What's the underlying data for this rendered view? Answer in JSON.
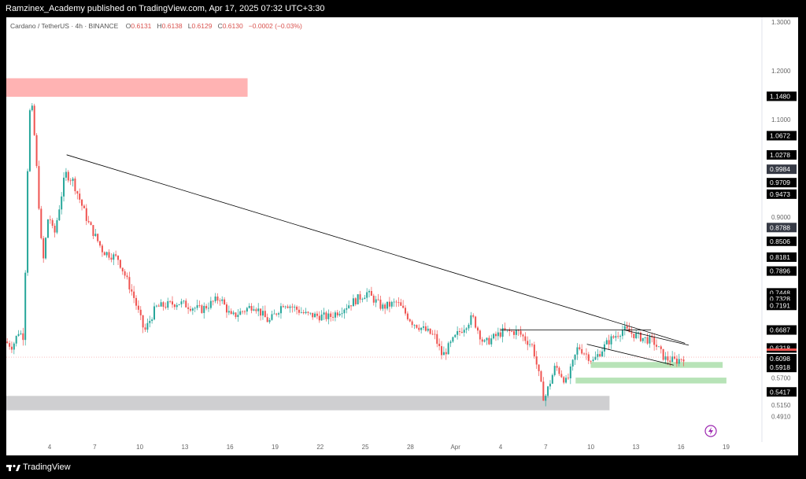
{
  "header": {
    "publish_line": "Ramzinex_Academy published on TradingView.com, Apr 17, 2025 07:32 UTC+3:30"
  },
  "legend": {
    "symbol": "Cardano / TetherUS · 4h · BINANCE",
    "o_label": "O",
    "o_value": "0.6131",
    "h_label": "H",
    "h_value": "0.6138",
    "l_label": "L",
    "l_value": "0.6129",
    "c_label": "C",
    "c_value": "0.6130",
    "change": "−0.0002 (−0.03%)"
  },
  "footer": {
    "logo_text": "TradingView"
  },
  "colors": {
    "up": "#26a69a",
    "down": "#ef5350",
    "supply_zone": "#ffb3b3",
    "demand_zone": "#b7e3b7",
    "grey_zone": "#cfcfd1",
    "price_tag": "#000000",
    "last_price_line": "#ef5350"
  },
  "chart_data": {
    "type": "candlestick",
    "title": "Cardano / TetherUS · 4h · BINANCE",
    "ylim": [
      0.455,
      1.31
    ],
    "x_ticks": [
      "4",
      "7",
      "10",
      "13",
      "16",
      "19",
      "22",
      "25",
      "28",
      "Apr",
      "4",
      "7",
      "10",
      "13",
      "16",
      "19"
    ],
    "y_tick_values": [
      "1.3000",
      "1.2000",
      "1.1000",
      "0.9000",
      "0.5700",
      "0.5150",
      "0.4910"
    ],
    "price_labels": [
      {
        "value": "1.1480",
        "style": "dark"
      },
      {
        "value": "1.0672",
        "style": "dark"
      },
      {
        "value": "1.0278",
        "style": "dark"
      },
      {
        "value": "0.9984",
        "style": "grey"
      },
      {
        "value": "0.9709",
        "style": "dark"
      },
      {
        "value": "0.9473",
        "style": "dark"
      },
      {
        "value": "0.8788",
        "style": "grey"
      },
      {
        "value": "0.8506",
        "style": "dark"
      },
      {
        "value": "0.8181",
        "style": "dark"
      },
      {
        "value": "0.7896",
        "style": "dark"
      },
      {
        "value": "0.7448",
        "style": "dark"
      },
      {
        "value": "0.7328",
        "style": "dark"
      },
      {
        "value": "0.7191",
        "style": "dark"
      },
      {
        "value": "0.6687",
        "style": "dark"
      },
      {
        "value": "0.6318",
        "style": "dark"
      },
      {
        "value": "0.6098",
        "style": "dark"
      },
      {
        "value": "0.5918",
        "style": "dark"
      },
      {
        "value": "0.5417",
        "style": "dark"
      }
    ],
    "zones": [
      {
        "kind": "supply",
        "y_top": 1.185,
        "y_bottom": 1.147,
        "x_start": 0.0,
        "x_end": 0.32
      },
      {
        "kind": "demand",
        "y_top": 0.603,
        "y_bottom": 0.591,
        "x_start": 0.775,
        "x_end": 0.95
      },
      {
        "kind": "demand",
        "y_top": 0.571,
        "y_bottom": 0.559,
        "x_start": 0.755,
        "x_end": 0.955
      },
      {
        "kind": "range",
        "y_top": 0.5335,
        "y_bottom": 0.504,
        "x_start": 0.0,
        "x_end": 0.8
      }
    ],
    "trendlines": [
      {
        "from": [
          0.08,
          1.028
        ],
        "to": [
          0.9,
          0.6415
        ]
      },
      {
        "from": [
          0.655,
          0.6686
        ],
        "to": [
          0.855,
          0.6686
        ]
      },
      {
        "from": [
          0.77,
          0.6395
        ],
        "to": [
          0.885,
          0.5965
        ]
      },
      {
        "from": [
          0.82,
          0.6686
        ],
        "to": [
          0.905,
          0.6375
        ]
      }
    ],
    "path_anchors": [
      [
        0.0,
        0.645
      ],
      [
        0.01,
        0.635
      ],
      [
        0.018,
        0.665
      ],
      [
        0.025,
        0.655
      ],
      [
        0.03,
        1.0
      ],
      [
        0.034,
        1.155
      ],
      [
        0.04,
        1.05
      ],
      [
        0.05,
        0.8
      ],
      [
        0.058,
        0.91
      ],
      [
        0.065,
        0.86
      ],
      [
        0.08,
        0.99
      ],
      [
        0.09,
        0.975
      ],
      [
        0.11,
        0.89
      ],
      [
        0.13,
        0.83
      ],
      [
        0.15,
        0.815
      ],
      [
        0.17,
        0.74
      ],
      [
        0.185,
        0.665
      ],
      [
        0.2,
        0.715
      ],
      [
        0.23,
        0.725
      ],
      [
        0.26,
        0.71
      ],
      [
        0.285,
        0.735
      ],
      [
        0.3,
        0.695
      ],
      [
        0.33,
        0.72
      ],
      [
        0.35,
        0.685
      ],
      [
        0.37,
        0.725
      ],
      [
        0.4,
        0.7
      ],
      [
        0.43,
        0.695
      ],
      [
        0.46,
        0.725
      ],
      [
        0.48,
        0.745
      ],
      [
        0.5,
        0.715
      ],
      [
        0.52,
        0.725
      ],
      [
        0.54,
        0.685
      ],
      [
        0.57,
        0.655
      ],
      [
        0.58,
        0.615
      ],
      [
        0.6,
        0.66
      ],
      [
        0.62,
        0.695
      ],
      [
        0.635,
        0.64
      ],
      [
        0.66,
        0.665
      ],
      [
        0.68,
        0.665
      ],
      [
        0.7,
        0.635
      ],
      [
        0.715,
        0.525
      ],
      [
        0.73,
        0.595
      ],
      [
        0.745,
        0.56
      ],
      [
        0.76,
        0.635
      ],
      [
        0.78,
        0.605
      ],
      [
        0.8,
        0.645
      ],
      [
        0.82,
        0.67
      ],
      [
        0.84,
        0.655
      ],
      [
        0.86,
        0.645
      ],
      [
        0.875,
        0.61
      ],
      [
        0.89,
        0.605
      ],
      [
        0.9,
        0.613
      ]
    ],
    "last_price": 0.613,
    "grid": false,
    "legend": "top-left"
  }
}
